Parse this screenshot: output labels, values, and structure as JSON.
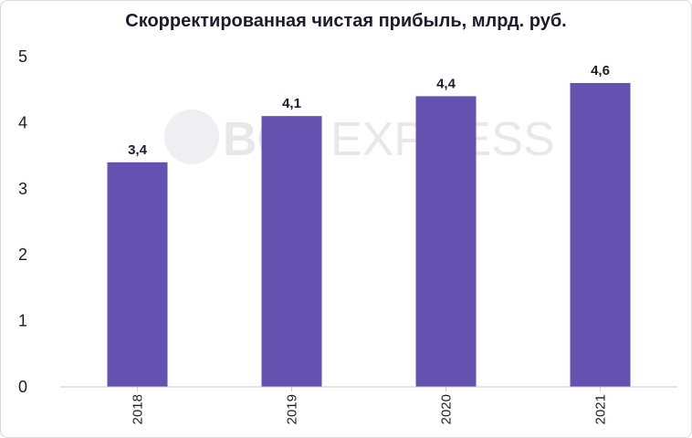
{
  "chart_data": {
    "type": "bar",
    "title": "Скорректированная чистая прибыль, млрд. руб.",
    "categories": [
      "2018",
      "2019",
      "2020",
      "2021"
    ],
    "values": [
      3.4,
      4.1,
      4.4,
      4.6
    ],
    "value_labels": [
      "3,4",
      "4,1",
      "4,4",
      "4,6"
    ],
    "ylim": [
      0,
      5
    ],
    "yticks": [
      "0",
      "1",
      "2",
      "3",
      "4",
      "5"
    ],
    "grid": false,
    "legend": "none",
    "bar_color": "#6552b0",
    "xlabel": "",
    "ylabel": ""
  },
  "watermark": {
    "brand": "BCS",
    "product": "EXPRESS"
  }
}
